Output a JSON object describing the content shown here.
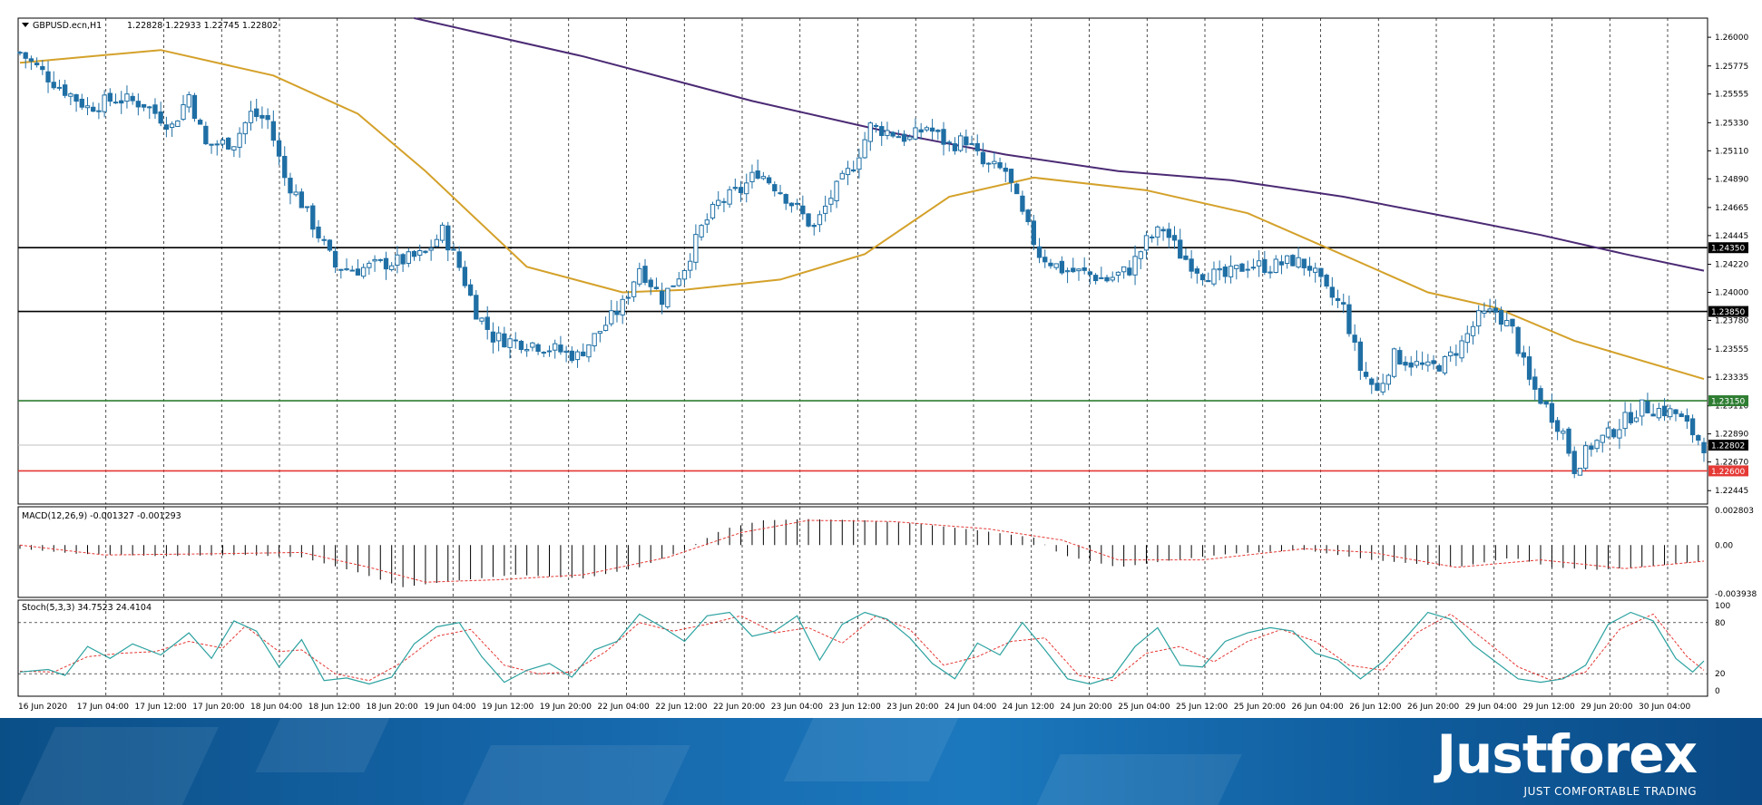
{
  "chart_data": [
    {
      "type": "candlestick",
      "title": "GBPUSD.ecn,H1",
      "header_values": "1.22828 1.22933 1.22745 1.22802",
      "ylim": [
        1.2234,
        1.2615
      ],
      "y_ticks": [
        "1.26000",
        "1.25775",
        "1.25555",
        "1.25330",
        "1.25110",
        "1.24890",
        "1.24665",
        "1.24445",
        "1.24220",
        "1.24000",
        "1.23780",
        "1.23555",
        "1.23335",
        "1.23110",
        "1.22890",
        "1.22670",
        "1.22445"
      ],
      "x_tick_labels": [
        "16 Jun 2020",
        "17 Jun 04:00",
        "17 Jun 12:00",
        "17 Jun 20:00",
        "18 Jun 04:00",
        "18 Jun 12:00",
        "18 Jun 20:00",
        "19 Jun 04:00",
        "19 Jun 12:00",
        "19 Jun 20:00",
        "22 Jun 04:00",
        "22 Jun 12:00",
        "22 Jun 20:00",
        "23 Jun 04:00",
        "23 Jun 12:00",
        "23 Jun 20:00",
        "24 Jun 04:00",
        "24 Jun 12:00",
        "24 Jun 20:00",
        "25 Jun 04:00",
        "25 Jun 12:00",
        "25 Jun 20:00",
        "26 Jun 04:00",
        "26 Jun 12:00",
        "26 Jun 20:00",
        "29 Jun 04:00",
        "29 Jun 12:00",
        "29 Jun 20:00",
        "30 Jun 04:00"
      ],
      "close_path": [
        [
          0,
          1.2588
        ],
        [
          6,
          1.2565
        ],
        [
          12,
          1.2545
        ],
        [
          17,
          1.2552
        ],
        [
          22,
          1.2548
        ],
        [
          27,
          1.253
        ],
        [
          30,
          1.2555
        ],
        [
          33,
          1.2515
        ],
        [
          38,
          1.2518
        ],
        [
          41,
          1.254
        ],
        [
          44,
          1.2535
        ],
        [
          47,
          1.249
        ],
        [
          50,
          1.247
        ],
        [
          53,
          1.2445
        ],
        [
          56,
          1.242
        ],
        [
          60,
          1.2418
        ],
        [
          64,
          1.2422
        ],
        [
          68,
          1.2425
        ],
        [
          72,
          1.243
        ],
        [
          75,
          1.2448
        ],
        [
          78,
          1.242
        ],
        [
          81,
          1.2385
        ],
        [
          84,
          1.2365
        ],
        [
          87,
          1.2362
        ],
        [
          91,
          1.236
        ],
        [
          95,
          1.2355
        ],
        [
          99,
          1.235
        ],
        [
          103,
          1.237
        ],
        [
          107,
          1.239
        ],
        [
          110,
          1.242
        ],
        [
          114,
          1.2395
        ],
        [
          118,
          1.242
        ],
        [
          121,
          1.245
        ],
        [
          124,
          1.247
        ],
        [
          128,
          1.248
        ],
        [
          131,
          1.2495
        ],
        [
          135,
          1.248
        ],
        [
          138,
          1.2465
        ],
        [
          141,
          1.245
        ],
        [
          144,
          1.2475
        ],
        [
          148,
          1.25
        ],
        [
          151,
          1.253
        ],
        [
          155,
          1.2525
        ],
        [
          158,
          1.252
        ],
        [
          161,
          1.253
        ],
        [
          165,
          1.2515
        ],
        [
          168,
          1.252
        ],
        [
          171,
          1.25
        ],
        [
          175,
          1.2495
        ],
        [
          178,
          1.246
        ],
        [
          181,
          1.243
        ],
        [
          185,
          1.2418
        ],
        [
          189,
          1.2415
        ],
        [
          193,
          1.241
        ],
        [
          197,
          1.2418
        ],
        [
          200,
          1.244
        ],
        [
          203,
          1.245
        ],
        [
          206,
          1.243
        ],
        [
          210,
          1.2415
        ],
        [
          214,
          1.2412
        ],
        [
          218,
          1.2422
        ],
        [
          222,
          1.242
        ],
        [
          226,
          1.2425
        ],
        [
          229,
          1.242
        ],
        [
          232,
          1.24
        ],
        [
          235,
          1.2388
        ],
        [
          238,
          1.234
        ],
        [
          241,
          1.2322
        ],
        [
          244,
          1.235
        ],
        [
          247,
          1.2345
        ],
        [
          250,
          1.234
        ],
        [
          253,
          1.2345
        ],
        [
          256,
          1.236
        ],
        [
          259,
          1.238
        ],
        [
          262,
          1.2385
        ],
        [
          265,
          1.237
        ],
        [
          268,
          1.233
        ],
        [
          271,
          1.231
        ],
        [
          274,
          1.229
        ],
        [
          276,
          1.2262
        ],
        [
          279,
          1.228
        ],
        [
          282,
          1.2288
        ],
        [
          285,
          1.23
        ],
        [
          288,
          1.231
        ],
        [
          291,
          1.2308
        ],
        [
          294,
          1.2305
        ],
        [
          297,
          1.229
        ],
        [
          299,
          1.228
        ]
      ],
      "ma_fast": [
        [
          0,
          1.258
        ],
        [
          25,
          1.259
        ],
        [
          45,
          1.257
        ],
        [
          60,
          1.254
        ],
        [
          72,
          1.2495
        ],
        [
          90,
          1.242
        ],
        [
          107,
          1.24
        ],
        [
          118,
          1.2402
        ],
        [
          135,
          1.241
        ],
        [
          150,
          1.243
        ],
        [
          165,
          1.2475
        ],
        [
          180,
          1.249
        ],
        [
          200,
          1.248
        ],
        [
          218,
          1.2462
        ],
        [
          232,
          1.2435
        ],
        [
          250,
          1.24
        ],
        [
          262,
          1.2388
        ],
        [
          276,
          1.2362
        ],
        [
          299,
          1.2332
        ]
      ],
      "ma_slow": [
        [
          70,
          1.2615
        ],
        [
          100,
          1.2585
        ],
        [
          130,
          1.255
        ],
        [
          155,
          1.2525
        ],
        [
          175,
          1.2508
        ],
        [
          195,
          1.2495
        ],
        [
          215,
          1.2488
        ],
        [
          235,
          1.2475
        ],
        [
          255,
          1.2458
        ],
        [
          270,
          1.2445
        ],
        [
          285,
          1.243
        ],
        [
          299,
          1.2417
        ]
      ],
      "hlines": [
        {
          "value": 1.2435,
          "label": "1.24350",
          "color": "#000000"
        },
        {
          "value": 1.2385,
          "label": "1.23850",
          "color": "#000000"
        },
        {
          "value": 1.2315,
          "label": "1.23150",
          "color": "#2e7d32"
        },
        {
          "value": 1.226,
          "label": "1.22600",
          "color": "#e53935"
        },
        {
          "value": 1.22802,
          "label": "1.22802",
          "color": "#c0c0c0",
          "current": true
        }
      ],
      "colors": {
        "bull": "#1f6fa5",
        "bear": "#1f6fa5",
        "ma_fast": "#d4a12a",
        "ma_slow": "#4b2a74",
        "grid": "#000000"
      }
    },
    {
      "type": "macd",
      "title": "MACD(12,26,9) -0.001327 -0.001293",
      "ylim": [
        -0.003938,
        0.002803
      ],
      "y_ticks": [
        "0.002803",
        "0.00",
        "-0.003938"
      ],
      "histogram_path": [
        [
          0,
          -0.0003
        ],
        [
          10,
          -0.0007
        ],
        [
          25,
          -0.0009
        ],
        [
          40,
          -0.0008
        ],
        [
          50,
          -0.001
        ],
        [
          60,
          -0.0022
        ],
        [
          68,
          -0.0034
        ],
        [
          75,
          -0.003
        ],
        [
          88,
          -0.0024
        ],
        [
          100,
          -0.0027
        ],
        [
          110,
          -0.0018
        ],
        [
          118,
          -0.0004
        ],
        [
          125,
          0.0013
        ],
        [
          132,
          0.002
        ],
        [
          140,
          0.0021
        ],
        [
          150,
          0.002
        ],
        [
          160,
          0.0017
        ],
        [
          170,
          0.0012
        ],
        [
          180,
          0.0006
        ],
        [
          185,
          -0.0008
        ],
        [
          195,
          -0.0018
        ],
        [
          205,
          -0.0012
        ],
        [
          215,
          -0.0007
        ],
        [
          228,
          -0.0004
        ],
        [
          240,
          -0.0012
        ],
        [
          255,
          -0.0018
        ],
        [
          265,
          -0.001
        ],
        [
          272,
          -0.0018
        ],
        [
          280,
          -0.002
        ],
        [
          290,
          -0.0017
        ],
        [
          299,
          -0.0013
        ]
      ],
      "signal_path": [
        [
          0,
          0.0
        ],
        [
          15,
          -0.0008
        ],
        [
          35,
          -0.0007
        ],
        [
          50,
          -0.0006
        ],
        [
          62,
          -0.0018
        ],
        [
          72,
          -0.003
        ],
        [
          85,
          -0.0028
        ],
        [
          100,
          -0.0024
        ],
        [
          115,
          -0.001
        ],
        [
          128,
          0.001
        ],
        [
          140,
          0.002
        ],
        [
          155,
          0.0019
        ],
        [
          172,
          0.0013
        ],
        [
          185,
          0.0004
        ],
        [
          195,
          -0.0012
        ],
        [
          210,
          -0.0012
        ],
        [
          228,
          -0.0003
        ],
        [
          240,
          -0.0006
        ],
        [
          255,
          -0.0018
        ],
        [
          270,
          -0.0012
        ],
        [
          285,
          -0.0019
        ],
        [
          299,
          -0.0013
        ]
      ],
      "colors": {
        "histogram": "#000000",
        "signal": "#e53935"
      }
    },
    {
      "type": "stochastic",
      "title": "Stoch(5,3,3) 34.7523 24.4104",
      "ylim": [
        0,
        100
      ],
      "y_ticks": [
        "100",
        "80",
        "20",
        "0"
      ],
      "levels": [
        80,
        20
      ],
      "main_path": [
        [
          0,
          22
        ],
        [
          5,
          25
        ],
        [
          8,
          18
        ],
        [
          12,
          52
        ],
        [
          16,
          38
        ],
        [
          20,
          55
        ],
        [
          25,
          42
        ],
        [
          30,
          68
        ],
        [
          34,
          38
        ],
        [
          38,
          82
        ],
        [
          42,
          70
        ],
        [
          46,
          28
        ],
        [
          50,
          60
        ],
        [
          54,
          12
        ],
        [
          58,
          15
        ],
        [
          62,
          8
        ],
        [
          66,
          16
        ],
        [
          70,
          55
        ],
        [
          74,
          75
        ],
        [
          78,
          80
        ],
        [
          82,
          40
        ],
        [
          86,
          10
        ],
        [
          90,
          24
        ],
        [
          94,
          32
        ],
        [
          98,
          16
        ],
        [
          102,
          48
        ],
        [
          106,
          58
        ],
        [
          110,
          90
        ],
        [
          114,
          75
        ],
        [
          118,
          58
        ],
        [
          122,
          88
        ],
        [
          126,
          92
        ],
        [
          130,
          64
        ],
        [
          134,
          70
        ],
        [
          138,
          88
        ],
        [
          142,
          36
        ],
        [
          146,
          78
        ],
        [
          150,
          92
        ],
        [
          154,
          84
        ],
        [
          158,
          62
        ],
        [
          162,
          32
        ],
        [
          166,
          14
        ],
        [
          170,
          56
        ],
        [
          174,
          42
        ],
        [
          178,
          80
        ],
        [
          182,
          48
        ],
        [
          186,
          14
        ],
        [
          190,
          8
        ],
        [
          194,
          16
        ],
        [
          198,
          52
        ],
        [
          202,
          74
        ],
        [
          206,
          30
        ],
        [
          210,
          28
        ],
        [
          214,
          58
        ],
        [
          218,
          68
        ],
        [
          222,
          74
        ],
        [
          226,
          70
        ],
        [
          230,
          44
        ],
        [
          234,
          36
        ],
        [
          238,
          14
        ],
        [
          242,
          34
        ],
        [
          246,
          62
        ],
        [
          250,
          92
        ],
        [
          254,
          84
        ],
        [
          258,
          54
        ],
        [
          262,
          34
        ],
        [
          266,
          14
        ],
        [
          270,
          10
        ],
        [
          274,
          14
        ],
        [
          278,
          30
        ],
        [
          282,
          78
        ],
        [
          286,
          92
        ],
        [
          290,
          82
        ],
        [
          294,
          38
        ],
        [
          297,
          22
        ],
        [
          299,
          35
        ]
      ],
      "signal_path": [
        [
          0,
          23
        ],
        [
          6,
          22
        ],
        [
          12,
          40
        ],
        [
          18,
          44
        ],
        [
          24,
          46
        ],
        [
          30,
          58
        ],
        [
          36,
          50
        ],
        [
          40,
          76
        ],
        [
          46,
          46
        ],
        [
          50,
          48
        ],
        [
          56,
          20
        ],
        [
          62,
          12
        ],
        [
          68,
          34
        ],
        [
          74,
          64
        ],
        [
          80,
          72
        ],
        [
          86,
          30
        ],
        [
          92,
          20
        ],
        [
          98,
          22
        ],
        [
          104,
          46
        ],
        [
          110,
          80
        ],
        [
          116,
          70
        ],
        [
          122,
          78
        ],
        [
          128,
          88
        ],
        [
          134,
          68
        ],
        [
          140,
          74
        ],
        [
          146,
          56
        ],
        [
          152,
          88
        ],
        [
          158,
          72
        ],
        [
          164,
          30
        ],
        [
          170,
          40
        ],
        [
          176,
          58
        ],
        [
          182,
          62
        ],
        [
          188,
          18
        ],
        [
          194,
          12
        ],
        [
          200,
          44
        ],
        [
          206,
          52
        ],
        [
          212,
          34
        ],
        [
          218,
          58
        ],
        [
          224,
          72
        ],
        [
          230,
          58
        ],
        [
          236,
          30
        ],
        [
          242,
          24
        ],
        [
          248,
          68
        ],
        [
          254,
          90
        ],
        [
          260,
          60
        ],
        [
          266,
          28
        ],
        [
          272,
          12
        ],
        [
          278,
          22
        ],
        [
          284,
          72
        ],
        [
          290,
          90
        ],
        [
          296,
          40
        ],
        [
          299,
          24
        ]
      ],
      "colors": {
        "main": "#2ba2a0",
        "signal": "#e53935"
      }
    }
  ],
  "brand": {
    "name": "Justforex",
    "tagline": "JUST COMFORTABLE TRADING"
  }
}
